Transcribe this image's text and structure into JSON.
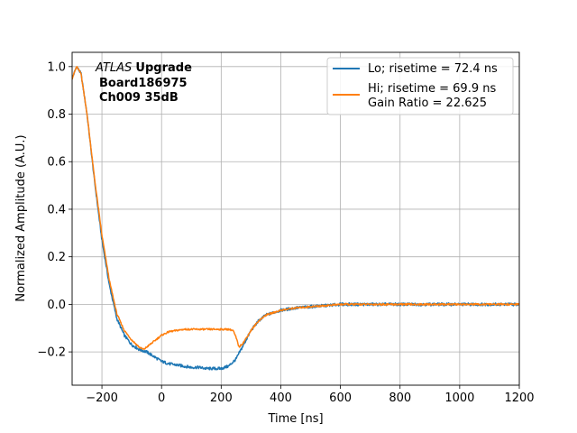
{
  "chart_data": {
    "type": "line",
    "xlabel": "Time [ns]",
    "ylabel": "Normalized Amplitude (A.U.)",
    "xlim": [
      -300,
      1200
    ],
    "ylim": [
      -0.34,
      1.06
    ],
    "xticks": [
      -200,
      0,
      200,
      400,
      600,
      800,
      1000,
      1200
    ],
    "xtick_labels": [
      "−200",
      "0",
      "200",
      "400",
      "600",
      "800",
      "1000",
      "1200"
    ],
    "yticks": [
      -0.2,
      0.0,
      0.2,
      0.4,
      0.6,
      0.8,
      1.0
    ],
    "ytick_labels": [
      "−0.2",
      "0.0",
      "0.2",
      "0.4",
      "0.6",
      "0.8",
      "1.0"
    ],
    "grid": true,
    "legend_position": "top-right",
    "annotation": {
      "line1_italic": "ATLAS",
      "line1_bold": "Upgrade",
      "line2": "Board186975",
      "line3": "Ch009 35dB"
    },
    "series": [
      {
        "name": "Lo; risetime = 72.4 ns",
        "color": "#1f77b4",
        "x": [
          -300,
          -285,
          -270,
          -250,
          -225,
          -200,
          -175,
          -150,
          -125,
          -100,
          -75,
          -50,
          -25,
          0,
          25,
          50,
          75,
          100,
          125,
          150,
          175,
          200,
          225,
          250,
          275,
          300,
          325,
          350,
          400,
          450,
          500,
          550,
          600,
          700,
          800,
          900,
          1000,
          1100,
          1200
        ],
        "y": [
          0.95,
          1.0,
          0.97,
          0.8,
          0.52,
          0.27,
          0.08,
          -0.06,
          -0.13,
          -0.17,
          -0.19,
          -0.2,
          -0.22,
          -0.24,
          -0.25,
          -0.255,
          -0.26,
          -0.265,
          -0.265,
          -0.27,
          -0.27,
          -0.27,
          -0.26,
          -0.23,
          -0.17,
          -0.11,
          -0.07,
          -0.045,
          -0.025,
          -0.015,
          -0.01,
          -0.005,
          0.0,
          0.0,
          0.0,
          0.0,
          0.0,
          0.0,
          0.0
        ]
      },
      {
        "name": "Hi; risetime = 69.9 ns\n Gain Ratio = 22.625",
        "color": "#ff7f0e",
        "x": [
          -300,
          -285,
          -270,
          -250,
          -225,
          -200,
          -175,
          -150,
          -125,
          -100,
          -75,
          -60,
          -50,
          -25,
          0,
          25,
          50,
          75,
          100,
          125,
          150,
          175,
          200,
          225,
          240,
          250,
          260,
          275,
          300,
          325,
          350,
          400,
          450,
          500,
          550,
          600,
          700,
          800,
          900,
          1000,
          1100,
          1200
        ],
        "y": [
          0.95,
          1.0,
          0.97,
          0.8,
          0.53,
          0.29,
          0.1,
          -0.04,
          -0.11,
          -0.15,
          -0.18,
          -0.19,
          -0.18,
          -0.155,
          -0.13,
          -0.115,
          -0.11,
          -0.105,
          -0.105,
          -0.105,
          -0.105,
          -0.105,
          -0.105,
          -0.105,
          -0.11,
          -0.14,
          -0.18,
          -0.16,
          -0.11,
          -0.07,
          -0.045,
          -0.025,
          -0.015,
          -0.01,
          -0.005,
          0.0,
          0.0,
          0.0,
          0.0,
          0.0,
          0.0,
          0.0
        ]
      }
    ]
  }
}
